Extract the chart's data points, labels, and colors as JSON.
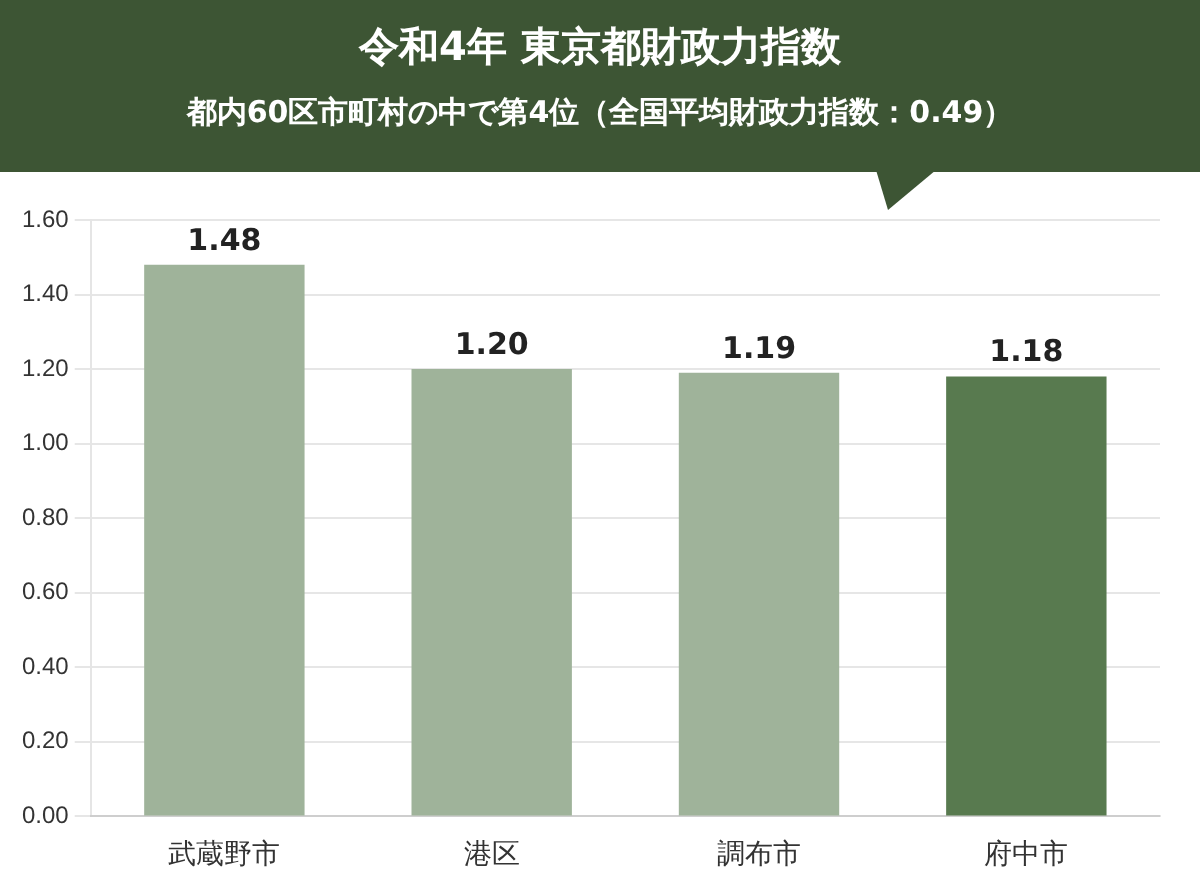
{
  "chart_data": {
    "type": "bar",
    "title": "令和4年 東京都財政力指数",
    "subtitle": "都内60区市町村の中で第4位（全国平均財政力指数：0.49）",
    "categories": [
      "武蔵野市",
      "港区",
      "調布市",
      "府中市"
    ],
    "values": [
      1.48,
      1.2,
      1.19,
      1.18
    ],
    "colors": [
      "#9fb39a",
      "#9fb39a",
      "#9fb39a",
      "#587a4f"
    ],
    "ylim": [
      0,
      1.6
    ],
    "yticks": [
      {
        "value": 0,
        "label": "0.00"
      },
      {
        "value": 0.2,
        "label": "0.20"
      },
      {
        "value": 0.4,
        "label": "0.40"
      },
      {
        "value": 0.6,
        "label": "0.60"
      },
      {
        "value": 0.8,
        "label": "0.80"
      },
      {
        "value": 1,
        "label": "1.00"
      },
      {
        "value": 1.2,
        "label": "1.20"
      },
      {
        "value": 1.4,
        "label": "1.40"
      },
      {
        "value": 1.6,
        "label": "1.60"
      }
    ],
    "value_labels": [
      "1.48",
      "1.20",
      "1.19",
      "1.18"
    ],
    "grid": "y",
    "legend": false
  }
}
